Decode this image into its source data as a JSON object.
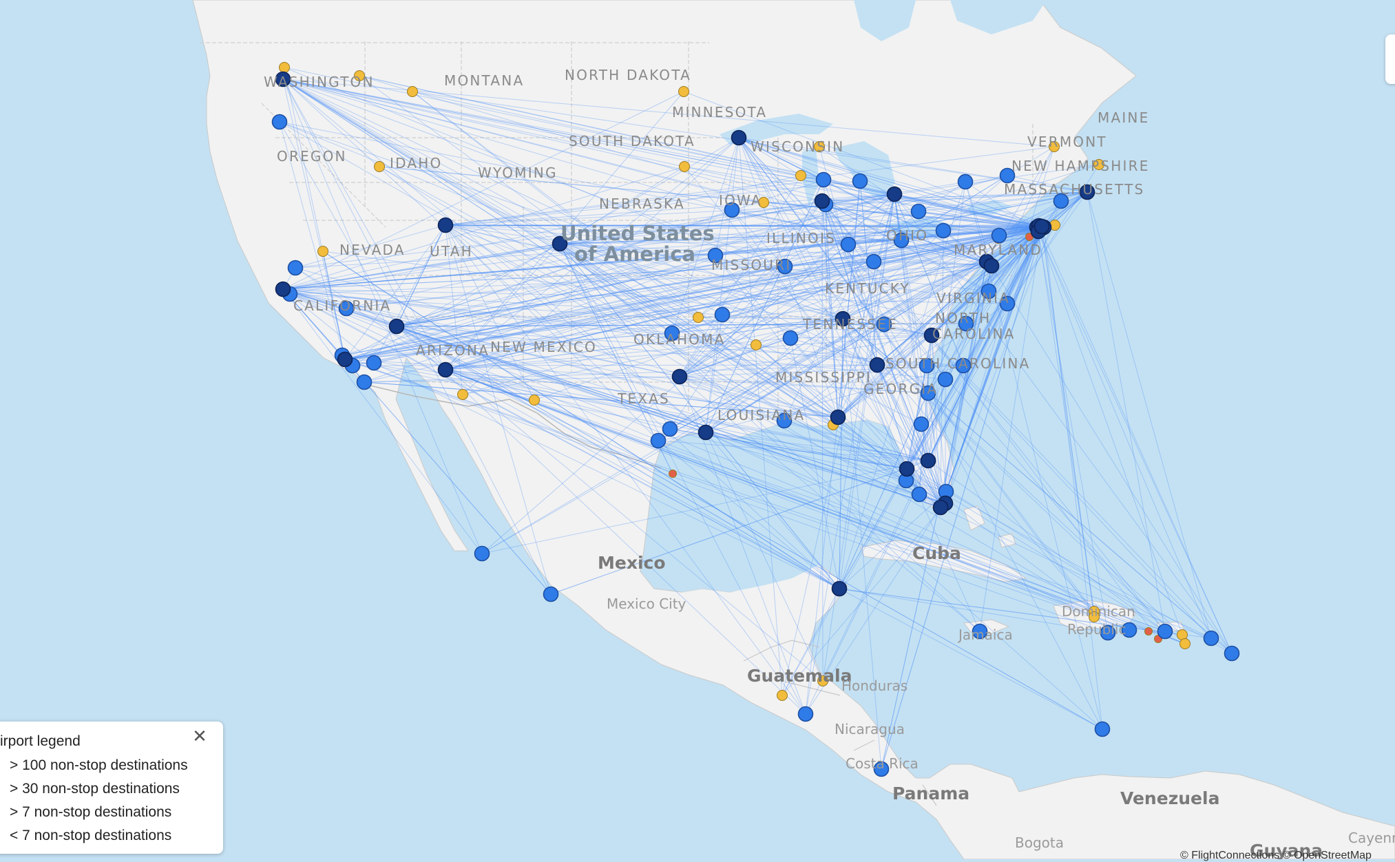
{
  "map": {
    "countries": [
      "United States",
      "of America",
      "Mexico",
      "Mexico City",
      "Cuba",
      "Guatemala",
      "Honduras",
      "Nicaragua",
      "Costa Rica",
      "Panama",
      "Venezuela",
      "Bogota",
      "Jamaica",
      "Dominican",
      "Republic",
      "Guyana",
      "Cayenne"
    ],
    "states": [
      "WASHINGTON",
      "MONTANA",
      "NORTH DAKOTA",
      "MINNESOTA",
      "SOUTH DAKOTA",
      "WISCONSIN",
      "OREGON",
      "IDAHO",
      "WYOMING",
      "NEBRASKA",
      "IOWA",
      "ILLINOIS",
      "OHIO",
      "MAINE",
      "VERMONT",
      "NEW HAMPSHIRE",
      "MASSACHUSETTS",
      "NEVADA",
      "UTAH",
      "MISSOURI",
      "MARYLAND",
      "KENTUCKY",
      "VIRGINIA",
      "CALIFORNIA",
      "TENNESSEE",
      "NORTH",
      "CAROLINA",
      "OKLAHOMA",
      "ARIZONA",
      "NEW MEXICO",
      "SOUTH CAROLINA",
      "MISSISSIPPI",
      "GEORGIA",
      "TEXAS",
      "LOUISIANA"
    ],
    "colors": {
      "water": "#c4e1f3",
      "land": "#f2f2f2",
      "route": "#4d8ef7",
      "airport_100": "#163b87",
      "airport_30": "#2f7be8",
      "airport_7": "#f2bc3c",
      "airport_lt7": "#e2604a"
    }
  },
  "legend": {
    "title": "Airport legend",
    "close_icon": "close-icon",
    "items": [
      {
        "label": "> 100 non-stop destinations",
        "color": "#163b87"
      },
      {
        "label": "> 30 non-stop destinations",
        "color": "#2f7be8"
      },
      {
        "label": "> 7 non-stop destinations",
        "color": "#f2bc3c"
      },
      {
        "label": "< 7 non-stop destinations",
        "color": "#e2604a"
      }
    ]
  },
  "attribution": "© FlightConnections © OpenStreetMap"
}
